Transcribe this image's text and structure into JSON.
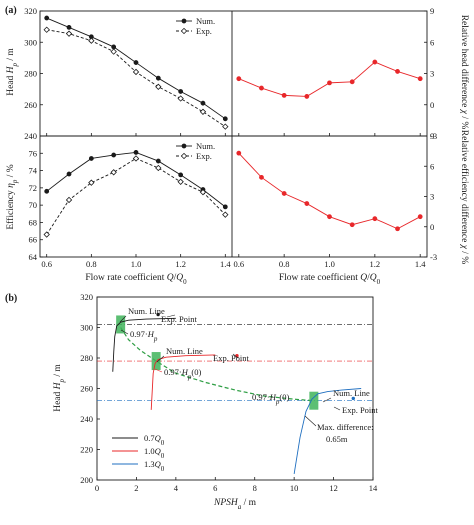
{
  "chart_data": [
    {
      "panel": "a-head",
      "type": "line",
      "panel_label": "(a)",
      "ylabel": "Head H_p / m",
      "ylim": [
        240,
        320
      ],
      "yticks": [
        240,
        260,
        280,
        300,
        320
      ],
      "x": [
        0.6,
        0.7,
        0.8,
        0.9,
        1.0,
        1.1,
        1.2,
        1.3,
        1.4
      ],
      "series": [
        {
          "name": "Num.",
          "color": "#1a1a1a",
          "marker": "filled-circle",
          "dash": "solid",
          "values": [
            315.5,
            309.5,
            303.5,
            297,
            287,
            277,
            268.5,
            261,
            251
          ]
        },
        {
          "name": "Exp.",
          "color": "#1a1a1a",
          "marker": "open-diamond",
          "dash": "dashed",
          "values": [
            308,
            305.5,
            301,
            294,
            281,
            271.5,
            264,
            255.5,
            246
          ]
        }
      ],
      "grid": false,
      "legend": "top-right"
    },
    {
      "panel": "a-head-diff",
      "type": "line",
      "ylabel": "Relative head difference χ / %",
      "ylim": [
        -3,
        9
      ],
      "yticks": [
        -3,
        0,
        3,
        6,
        9
      ],
      "x": [
        0.6,
        0.7,
        0.8,
        0.9,
        1.0,
        1.1,
        1.2,
        1.3,
        1.4
      ],
      "series": [
        {
          "name": "",
          "color": "#e8272a",
          "marker": "filled-circle",
          "dash": "solid",
          "values": [
            2.5,
            1.6,
            0.9,
            0.8,
            2.1,
            2.2,
            4.1,
            3.2,
            2.5
          ]
        }
      ],
      "grid": false
    },
    {
      "panel": "a-eff",
      "type": "line",
      "xlabel": "Flow rate coefficient Q/Q0",
      "ylabel": "Efficiency η_p / %",
      "ylim": [
        64,
        78
      ],
      "yticks": [
        64,
        66,
        68,
        70,
        72,
        74,
        76,
        78
      ],
      "xticks": [
        0.6,
        0.8,
        1.0,
        1.2,
        1.4
      ],
      "x": [
        0.6,
        0.7,
        0.8,
        0.9,
        1.0,
        1.1,
        1.2,
        1.3,
        1.4
      ],
      "series": [
        {
          "name": "Num.",
          "color": "#1a1a1a",
          "marker": "filled-circle",
          "dash": "solid",
          "values": [
            71.6,
            73.6,
            75.4,
            75.8,
            76.1,
            75.1,
            73.5,
            71.8,
            69.8
          ]
        },
        {
          "name": "Exp.",
          "color": "#1a1a1a",
          "marker": "open-diamond",
          "dash": "dashed",
          "values": [
            66.6,
            70.6,
            72.6,
            73.8,
            75.4,
            74.3,
            72.7,
            71.5,
            68.9
          ]
        }
      ],
      "grid": false,
      "legend": "top-right"
    },
    {
      "panel": "a-eff-diff",
      "type": "line",
      "xlabel": "Flow rate coefficient Q/Q0",
      "ylabel": "Relative efficiency difference χ / %",
      "ylim": [
        -3,
        9
      ],
      "yticks": [
        -3,
        0,
        3,
        6,
        9
      ],
      "xticks": [
        0.6,
        0.8,
        1.0,
        1.2,
        1.4
      ],
      "x": [
        0.6,
        0.7,
        0.8,
        0.9,
        1.0,
        1.1,
        1.2,
        1.3,
        1.4
      ],
      "series": [
        {
          "name": "",
          "color": "#e8272a",
          "marker": "filled-circle",
          "dash": "solid",
          "values": [
            7.3,
            4.9,
            3.3,
            2.3,
            1.0,
            0.2,
            0.8,
            -0.2,
            1.0
          ]
        }
      ],
      "grid": false
    },
    {
      "panel": "b",
      "type": "line",
      "panel_label": "(b)",
      "xlabel": "NPSH_a / m",
      "ylabel": "Head H_p / m",
      "xlim": [
        0,
        14
      ],
      "ylim": [
        200,
        320
      ],
      "xticks": [
        0,
        2,
        4,
        6,
        8,
        10,
        12,
        14
      ],
      "yticks": [
        200,
        220,
        240,
        260,
        280,
        300,
        320
      ],
      "series": [
        {
          "name": "0.7Q0",
          "color": "#1a1a1a",
          "x": [
            0.8,
            0.85,
            0.9,
            1.0,
            1.2,
            1.6,
            2.5,
            4.0
          ],
          "y": [
            271,
            284,
            294,
            301,
            303.5,
            304.8,
            305.5,
            306
          ],
          "exp_point": {
            "x": 3.1,
            "y": 308.5
          },
          "critical_line": 302
        },
        {
          "name": "1.0Q0",
          "color": "#e8272a",
          "x": [
            2.75,
            2.8,
            2.85,
            2.95,
            3.1,
            3.5,
            4.5,
            6.0
          ],
          "y": [
            246,
            258,
            270,
            276.5,
            279,
            280.5,
            281.5,
            282
          ],
          "exp_point": {
            "x": 7.1,
            "y": 281.5
          },
          "critical_line": 278
        },
        {
          "name": "1.3Q0",
          "color": "#1f6fc0",
          "x": [
            10.0,
            10.3,
            10.6,
            10.9,
            11.2,
            11.7,
            12.4,
            13.4
          ],
          "y": [
            204,
            228,
            245,
            253,
            256.5,
            258,
            259,
            260
          ],
          "exp_point": {
            "x": 13.0,
            "y": 253.5
          },
          "critical_line": 252
        }
      ],
      "green_band": {
        "x": [
          1.2,
          1.6,
          2.2,
          3.0,
          4.0,
          5.5,
          7.0,
          8.5,
          10.0,
          11.0
        ],
        "y": [
          300,
          292,
          285,
          278,
          270,
          264,
          259,
          255,
          253,
          252
        ]
      },
      "annotations": [
        {
          "text": "Num. Line"
        },
        {
          "text": "Exp. Point"
        },
        {
          "text": "0.97·H_p"
        },
        {
          "text": "Num. Line"
        },
        {
          "text": "Exp. Point"
        },
        {
          "text": "0.97·H_p(0)"
        },
        {
          "text": "0.97·H_p(0)"
        },
        {
          "text": "Num. Line"
        },
        {
          "text": "Exp. Point"
        },
        {
          "text": "Max. difference:"
        },
        {
          "text": "0.65m"
        }
      ],
      "grid": false,
      "legend": "bottom-left"
    }
  ]
}
